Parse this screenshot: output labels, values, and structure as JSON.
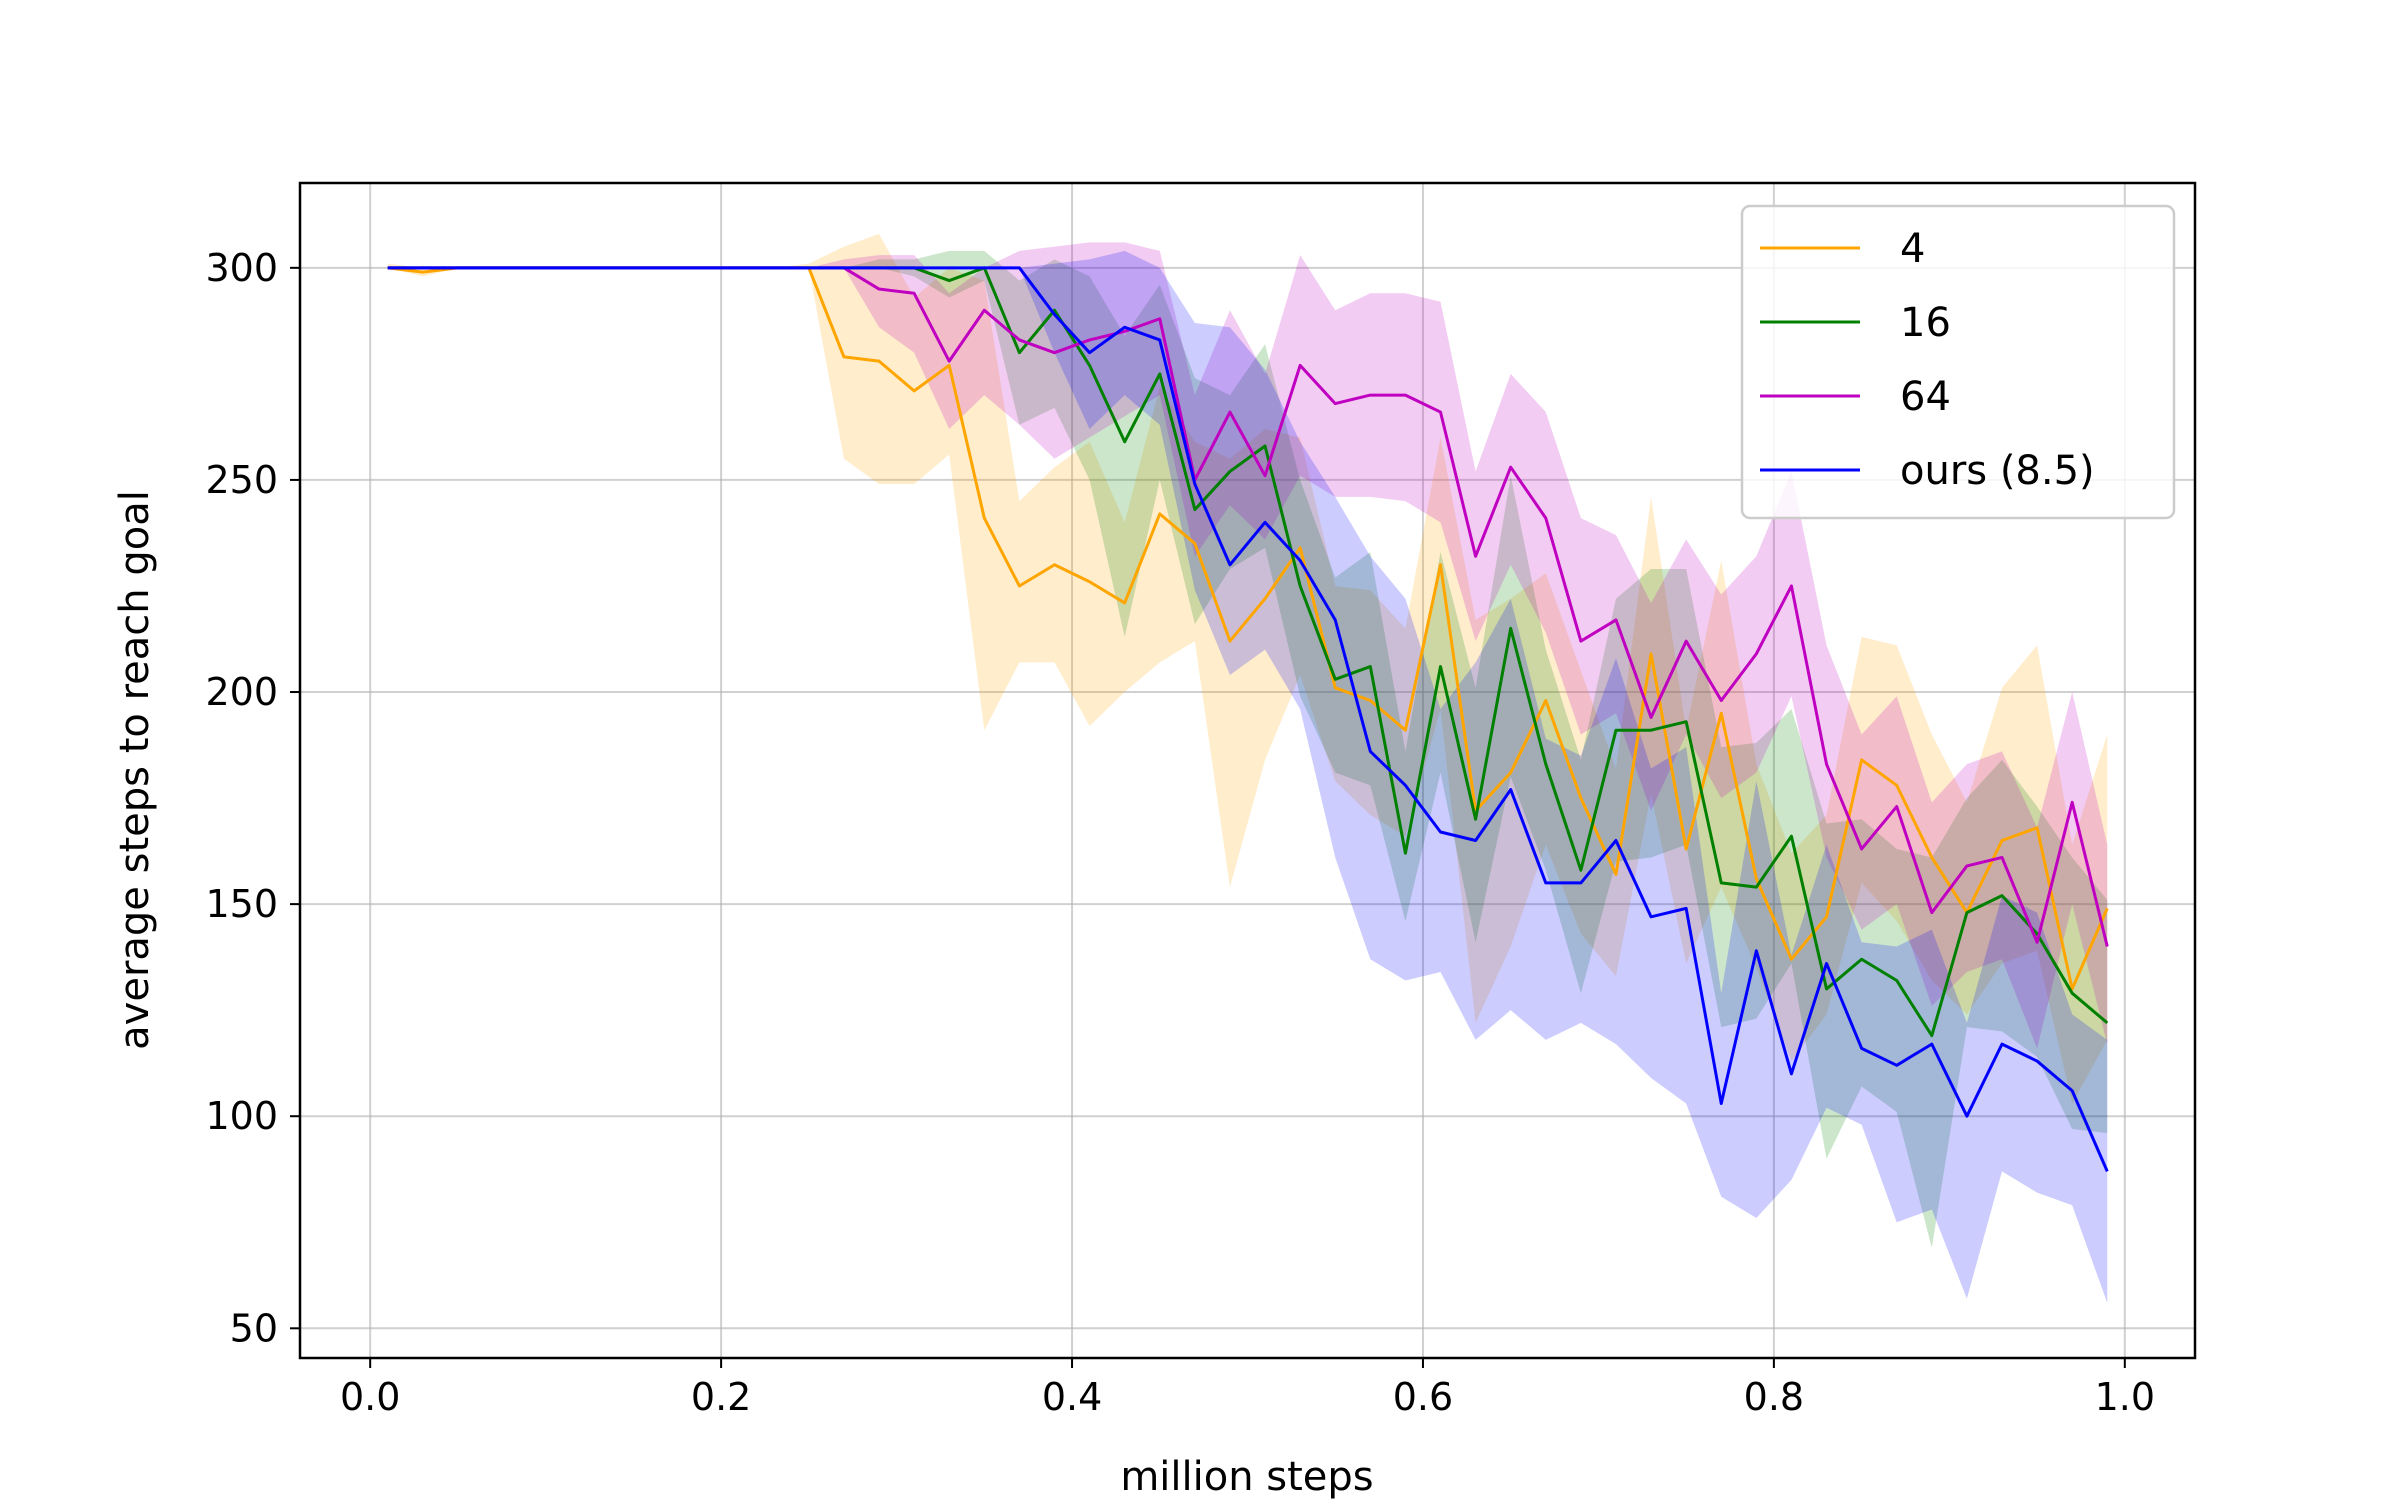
{
  "chart_data": {
    "type": "line",
    "title": "",
    "xlabel": "million steps",
    "ylabel": "average steps to reach goal",
    "xlim": [
      -0.04,
      1.04
    ],
    "ylim": [
      43,
      320
    ],
    "xticks": [
      0.0,
      0.2,
      0.4,
      0.6,
      0.8,
      1.0
    ],
    "xtick_labels": [
      "0.0",
      "0.2",
      "0.4",
      "0.6",
      "0.8",
      "1.0"
    ],
    "yticks": [
      50,
      100,
      150,
      200,
      250,
      300
    ],
    "ytick_labels": [
      "50",
      "100",
      "150",
      "200",
      "250",
      "300"
    ],
    "grid": true,
    "legend_position": "top-right",
    "x": [
      0.01,
      0.03,
      0.05,
      0.07,
      0.09,
      0.11,
      0.13,
      0.15,
      0.17,
      0.19,
      0.21,
      0.23,
      0.25,
      0.27,
      0.29,
      0.31,
      0.33,
      0.35,
      0.37,
      0.39,
      0.41,
      0.43,
      0.45,
      0.47,
      0.49,
      0.51,
      0.53,
      0.55,
      0.57,
      0.59,
      0.61,
      0.63,
      0.65,
      0.67,
      0.69,
      0.71,
      0.73,
      0.75,
      0.77,
      0.79,
      0.81,
      0.83,
      0.85,
      0.87,
      0.89,
      0.91,
      0.93,
      0.95,
      0.97,
      0.99
    ],
    "series": [
      {
        "name": "4",
        "color": "#ffa500",
        "values": [
          300,
          299,
          300,
          300,
          300,
          300,
          300,
          300,
          300,
          300,
          300,
          300,
          300,
          279,
          278,
          271,
          277,
          241,
          225,
          230,
          226,
          221,
          242,
          235,
          212,
          222,
          234,
          201,
          198,
          191,
          230,
          172,
          181,
          198,
          175,
          157,
          209,
          163,
          195,
          156,
          137,
          147,
          184,
          178,
          161,
          148,
          165,
          168,
          130,
          149
        ],
        "lower": [
          300,
          298,
          300,
          300,
          300,
          300,
          300,
          300,
          300,
          300,
          300,
          300,
          300,
          255,
          249,
          249,
          256,
          191,
          207,
          207,
          192,
          200,
          207,
          212,
          154,
          184,
          204,
          179,
          171,
          166,
          196,
          122,
          140,
          164,
          143,
          133,
          176,
          136,
          154,
          135,
          113,
          124,
          155,
          146,
          132,
          124,
          136,
          139,
          103,
          118
        ],
        "upper": [
          301,
          300,
          300,
          300,
          300,
          300,
          300,
          300,
          300,
          300,
          300,
          300,
          301,
          305,
          308,
          293,
          300,
          297,
          245,
          253,
          259,
          240,
          272,
          259,
          255,
          262,
          260,
          225,
          224,
          215,
          260,
          217,
          222,
          228,
          205,
          182,
          246,
          191,
          231,
          183,
          162,
          171,
          213,
          211,
          190,
          174,
          201,
          211,
          164,
          190
        ]
      },
      {
        "name": "16",
        "color": "#008000",
        "values": [
          300,
          300,
          300,
          300,
          300,
          300,
          300,
          300,
          300,
          300,
          300,
          300,
          300,
          300,
          300,
          300,
          297,
          300,
          280,
          290,
          277,
          259,
          275,
          243,
          252,
          258,
          225,
          203,
          206,
          162,
          206,
          170,
          215,
          183,
          158,
          191,
          191,
          193,
          155,
          154,
          166,
          130,
          137,
          132,
          119,
          148,
          152,
          143,
          129,
          122
        ],
        "lower": [
          300,
          300,
          300,
          300,
          300,
          300,
          300,
          300,
          300,
          300,
          300,
          300,
          300,
          300,
          300,
          298,
          293,
          297,
          263,
          267,
          250,
          213,
          250,
          216,
          229,
          234,
          199,
          181,
          178,
          146,
          181,
          141,
          180,
          158,
          129,
          160,
          161,
          164,
          121,
          123,
          136,
          90,
          107,
          101,
          69,
          121,
          120,
          114,
          97,
          96
        ],
        "upper": [
          300,
          300,
          300,
          300,
          300,
          300,
          300,
          300,
          300,
          300,
          300,
          300,
          300,
          300,
          302,
          302,
          304,
          304,
          297,
          302,
          298,
          284,
          296,
          274,
          270,
          282,
          250,
          227,
          233,
          186,
          233,
          201,
          251,
          210,
          184,
          222,
          229,
          229,
          187,
          188,
          196,
          169,
          170,
          163,
          161,
          175,
          184,
          173,
          161,
          151
        ]
      },
      {
        "name": "64",
        "color": "#c000c0",
        "values": [
          300,
          300,
          300,
          300,
          300,
          300,
          300,
          300,
          300,
          300,
          300,
          300,
          300,
          300,
          295,
          294,
          278,
          290,
          283,
          280,
          283,
          285,
          288,
          250,
          266,
          251,
          277,
          268,
          270,
          270,
          266,
          232,
          253,
          241,
          212,
          217,
          194,
          212,
          198,
          209,
          225,
          183,
          163,
          173,
          148,
          159,
          161,
          141,
          174,
          140
        ],
        "lower": [
          300,
          300,
          300,
          300,
          300,
          300,
          300,
          300,
          300,
          300,
          300,
          300,
          300,
          300,
          286,
          280,
          262,
          270,
          263,
          255,
          260,
          265,
          270,
          232,
          244,
          236,
          251,
          246,
          246,
          245,
          240,
          212,
          230,
          214,
          190,
          195,
          172,
          190,
          175,
          181,
          199,
          161,
          144,
          150,
          126,
          134,
          137,
          116,
          150,
          117
        ],
        "upper": [
          300,
          300,
          300,
          300,
          300,
          300,
          300,
          300,
          300,
          300,
          300,
          300,
          300,
          302,
          303,
          303,
          294,
          300,
          304,
          305,
          306,
          306,
          304,
          270,
          290,
          275,
          303,
          290,
          294,
          294,
          292,
          252,
          275,
          266,
          241,
          237,
          221,
          236,
          223,
          232,
          252,
          211,
          190,
          199,
          174,
          183,
          186,
          168,
          200,
          164
        ]
      },
      {
        "name": "ours (8.5)",
        "color": "#0000ff",
        "values": [
          300,
          300,
          300,
          300,
          300,
          300,
          300,
          300,
          300,
          300,
          300,
          300,
          300,
          300,
          300,
          300,
          300,
          300,
          300,
          289,
          280,
          286,
          283,
          249,
          230,
          240,
          231,
          217,
          186,
          178,
          167,
          165,
          177,
          155,
          155,
          165,
          147,
          149,
          103,
          139,
          110,
          136,
          116,
          112,
          117,
          100,
          117,
          113,
          106,
          87
        ],
        "lower": [
          300,
          300,
          300,
          300,
          300,
          300,
          300,
          300,
          300,
          300,
          300,
          300,
          300,
          300,
          300,
          300,
          300,
          300,
          300,
          280,
          262,
          270,
          263,
          224,
          204,
          210,
          196,
          161,
          137,
          132,
          134,
          118,
          125,
          118,
          122,
          117,
          109,
          103,
          81,
          76,
          85,
          102,
          98,
          75,
          78,
          57,
          87,
          82,
          79,
          56
        ],
        "upper": [
          300,
          300,
          300,
          300,
          300,
          300,
          300,
          300,
          300,
          300,
          300,
          300,
          300,
          300,
          300,
          300,
          300,
          300,
          300,
          301,
          302,
          304,
          300,
          287,
          286,
          276,
          259,
          246,
          232,
          222,
          196,
          207,
          222,
          189,
          185,
          208,
          182,
          187,
          129,
          179,
          138,
          164,
          141,
          140,
          144,
          122,
          152,
          148,
          124,
          118
        ]
      }
    ]
  }
}
